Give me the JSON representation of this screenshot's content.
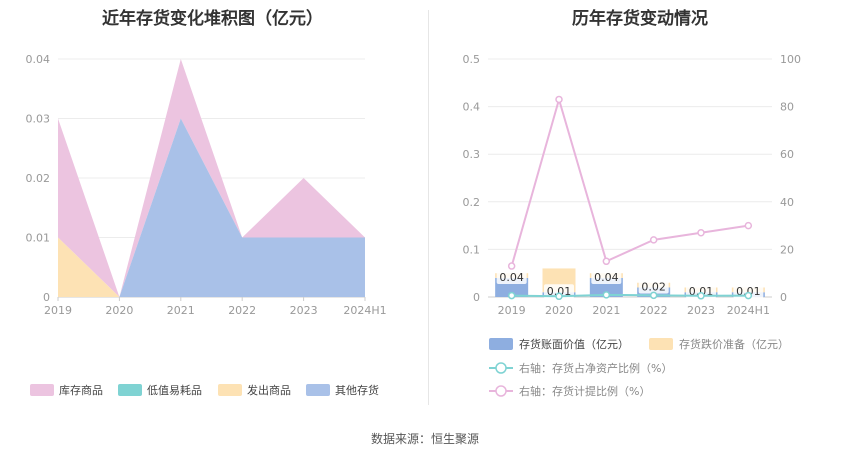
{
  "titles": {
    "left": "近年存货变化堆积图（亿元）",
    "right": "历年存货变动情况"
  },
  "source": "数据来源：恒生聚源",
  "chart_data": [
    {
      "type": "area",
      "stacked": true,
      "title": "近年存货变化堆积图（亿元）",
      "categories": [
        "2019",
        "2020",
        "2021",
        "2022",
        "2023",
        "2024H1"
      ],
      "ylim": [
        0,
        0.04
      ],
      "yticks": [
        "0",
        "0.01",
        "0.02",
        "0.03",
        "0.04"
      ],
      "grid": true,
      "legend_position": "bottom",
      "series": [
        {
          "name": "库存商品",
          "color": "#ecc4e0",
          "values": [
            0.02,
            0,
            0.01,
            0,
            0.01,
            0
          ]
        },
        {
          "name": "低值易耗品",
          "color": "#7fd3d3",
          "values": [
            0,
            0,
            0,
            0,
            0,
            0
          ]
        },
        {
          "name": "发出商品",
          "color": "#fde2b4",
          "values": [
            0.01,
            0,
            0,
            0,
            0,
            0
          ]
        },
        {
          "name": "其他存货",
          "color": "#a9c1e8",
          "values": [
            0,
            0,
            0.03,
            0.01,
            0.01,
            0.01
          ]
        }
      ]
    },
    {
      "type": "bar",
      "title": "历年存货变动情况",
      "categories": [
        "2019",
        "2020",
        "2021",
        "2022",
        "2023",
        "2024H1"
      ],
      "ylim": [
        0,
        0.5
      ],
      "yticks": [
        "0",
        "0.1",
        "0.2",
        "0.3",
        "0.4",
        "0.5"
      ],
      "y2lim": [
        0,
        100
      ],
      "y2ticks": [
        "0",
        "20",
        "40",
        "60",
        "80",
        "100"
      ],
      "grid": true,
      "legend_position": "bottom",
      "bar_series": [
        {
          "name": "存货账面价值（亿元）",
          "color": "#8eaee0",
          "values": [
            0.04,
            0.01,
            0.04,
            0.02,
            0.01,
            0.01
          ],
          "labels": [
            "0.04",
            "0.01",
            "0.04",
            "0.02",
            "0.01",
            "0.01"
          ]
        },
        {
          "name": "存货跌价准备（亿元）",
          "color": "#fde2b4",
          "values": [
            0.01,
            0.05,
            0.01,
            0.01,
            0.01,
            0.01
          ]
        }
      ],
      "line_series": [
        {
          "name": "右轴：存货占净资产比例（%）",
          "color": "#7fd3d3",
          "values": [
            0.6,
            0.3,
            0.9,
            0.7,
            0.5,
            0.6
          ]
        },
        {
          "name": "右轴：存货计提比例（%）",
          "color": "#e8b5dc",
          "values": [
            13,
            83,
            15,
            24,
            27,
            30
          ]
        }
      ]
    }
  ]
}
